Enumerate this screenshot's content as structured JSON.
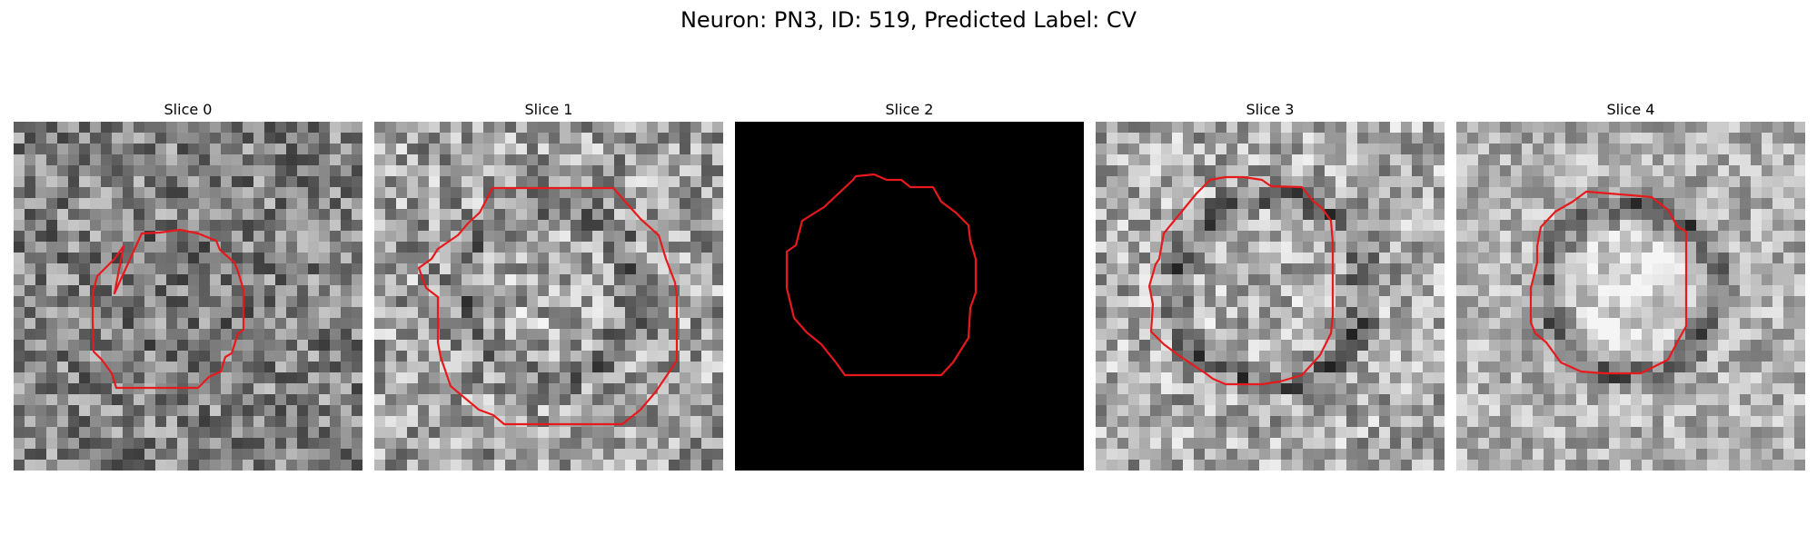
{
  "figure": {
    "title": "Neuron: PN3, ID: 519, Predicted Label: CV"
  },
  "panels": [
    {
      "title": "Slice 0",
      "image": "noisy-grayscale-slice",
      "contour_color": "#e8191c"
    },
    {
      "title": "Slice 1",
      "image": "noisy-grayscale-slice",
      "contour_color": "#e8191c"
    },
    {
      "title": "Slice 2",
      "image": "black-slice",
      "contour_color": "#e8191c"
    },
    {
      "title": "Slice 3",
      "image": "noisy-grayscale-slice",
      "contour_color": "#e8191c"
    },
    {
      "title": "Slice 4",
      "image": "noisy-grayscale-slice",
      "contour_color": "#e8191c"
    }
  ]
}
